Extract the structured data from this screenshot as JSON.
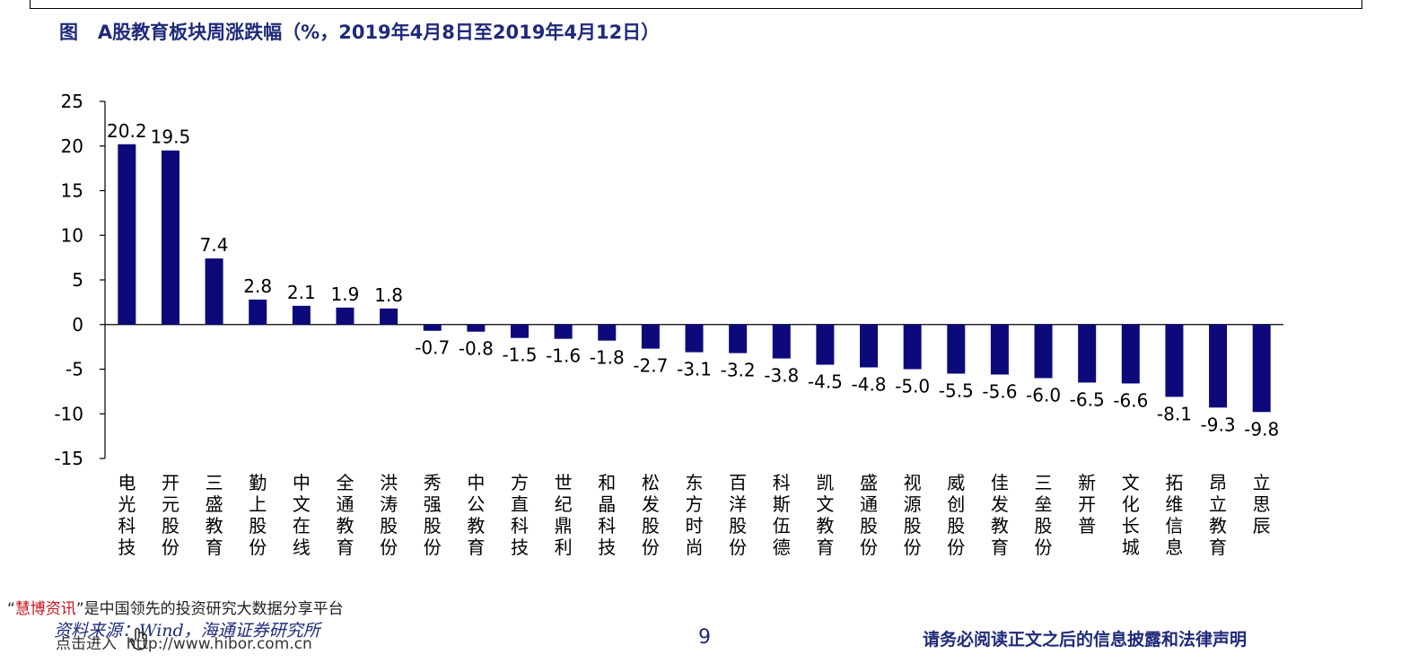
{
  "header": {
    "title": "图   A股教育板块周涨跌幅（%，2019年4月8日至2019年4月12日）"
  },
  "chart_data": {
    "type": "bar",
    "title": "图   A股教育板块周涨跌幅（%，2019年4月8日至2019年4月12日）",
    "xlabel": "",
    "ylabel": "",
    "ylim": [
      -15,
      25
    ],
    "yticks": [
      25,
      20,
      15,
      10,
      5,
      0,
      -5,
      -10,
      -15
    ],
    "grid": false,
    "bar_color": "#0c0a7a",
    "categories": [
      "电光科技",
      "开元股份",
      "三盛教育",
      "勤上股份",
      "中文在线",
      "全通教育",
      "洪涛股份",
      "秀强股份",
      "中公教育",
      "方直科技",
      "世纪鼎利",
      "和晶科技",
      "松发股份",
      "东方时尚",
      "百洋股份",
      "科斯伍德",
      "凯文教育",
      "盛通股份",
      "视源股份",
      "威创股份",
      "佳发教育",
      "三垒股份",
      "新开普",
      "文化长城",
      "拓维信息",
      "昂立教育",
      "立思辰"
    ],
    "values": [
      20.2,
      19.5,
      7.4,
      2.8,
      2.1,
      1.9,
      1.8,
      -0.7,
      -0.8,
      -1.5,
      -1.6,
      -1.8,
      -2.7,
      -3.1,
      -3.2,
      -3.8,
      -4.5,
      -4.8,
      -5.0,
      -5.5,
      -5.6,
      -6.0,
      -6.5,
      -6.6,
      -8.1,
      -9.3,
      -9.8
    ],
    "value_labels": [
      "20.2",
      "19.5",
      "7.4",
      "2.8",
      "2.1",
      "1.9",
      "1.8",
      "-0.7",
      "-0.8",
      "-1.5",
      "-1.6",
      "-1.8",
      "-2.7",
      "-3.1",
      "-3.2",
      "-3.8",
      "-4.5",
      "-4.8",
      "-5.0",
      "-5.5",
      "-5.6",
      "-6.0",
      "-6.5",
      "-6.6",
      "-8.1",
      "-9.3",
      "-9.8"
    ]
  },
  "footer": {
    "promo_quote_open": "“",
    "promo_brand": "慧博资讯",
    "promo_rest": "”是中国领先的投资研究大数据分享平台",
    "source": "资料来源：Wind，海通证券研究所",
    "link_text": "点击进入  http://www.hibor.com.cn",
    "page_number": "9",
    "disclaimer": "请务必阅读正文之后的信息披露和法律声明"
  }
}
